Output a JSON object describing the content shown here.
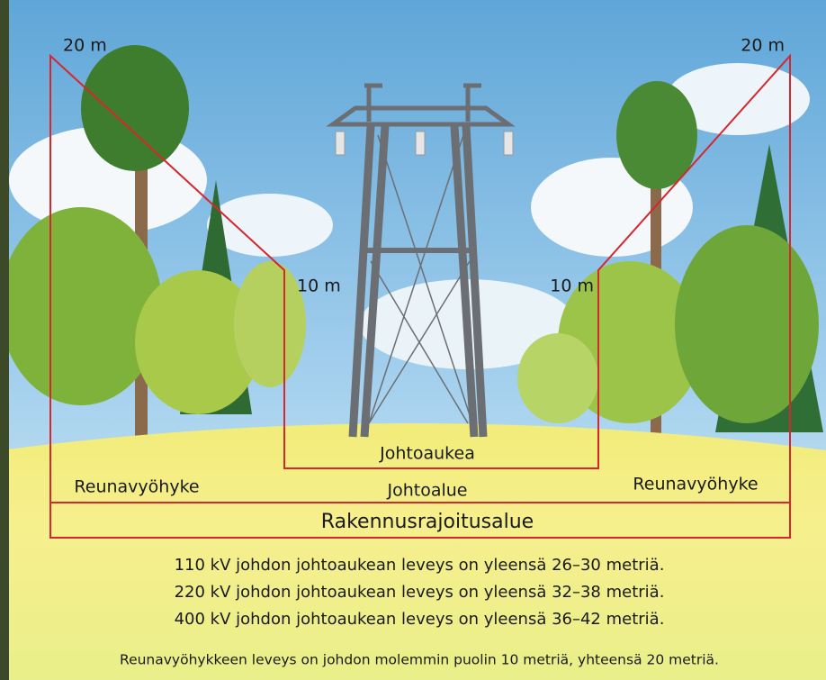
{
  "zones": {
    "width_left": "20 m",
    "width_right": "20 m",
    "inner_left": "10 m",
    "inner_right": "10 m",
    "clearing": "Johtoaukea",
    "edge_left": "Reunavyöhyke",
    "edge_right": "Reunavyöhyke",
    "line_area": "Johtoalue",
    "restriction_area": "Rakennusrajoitusalue"
  },
  "notes": [
    "110 kV johdon johtoaukean leveys on yleensä 26–30 metriä.",
    "220 kV johdon johtoaukean leveys on yleensä 32–38 metriä.",
    "400 kV johdon johtoaukean leveys on yleensä 36–42 metriä."
  ],
  "footnote": "Reunavyöhykkeen leveys on johdon molemmin puolin 10 metriä, yhteensä 20 metriä."
}
